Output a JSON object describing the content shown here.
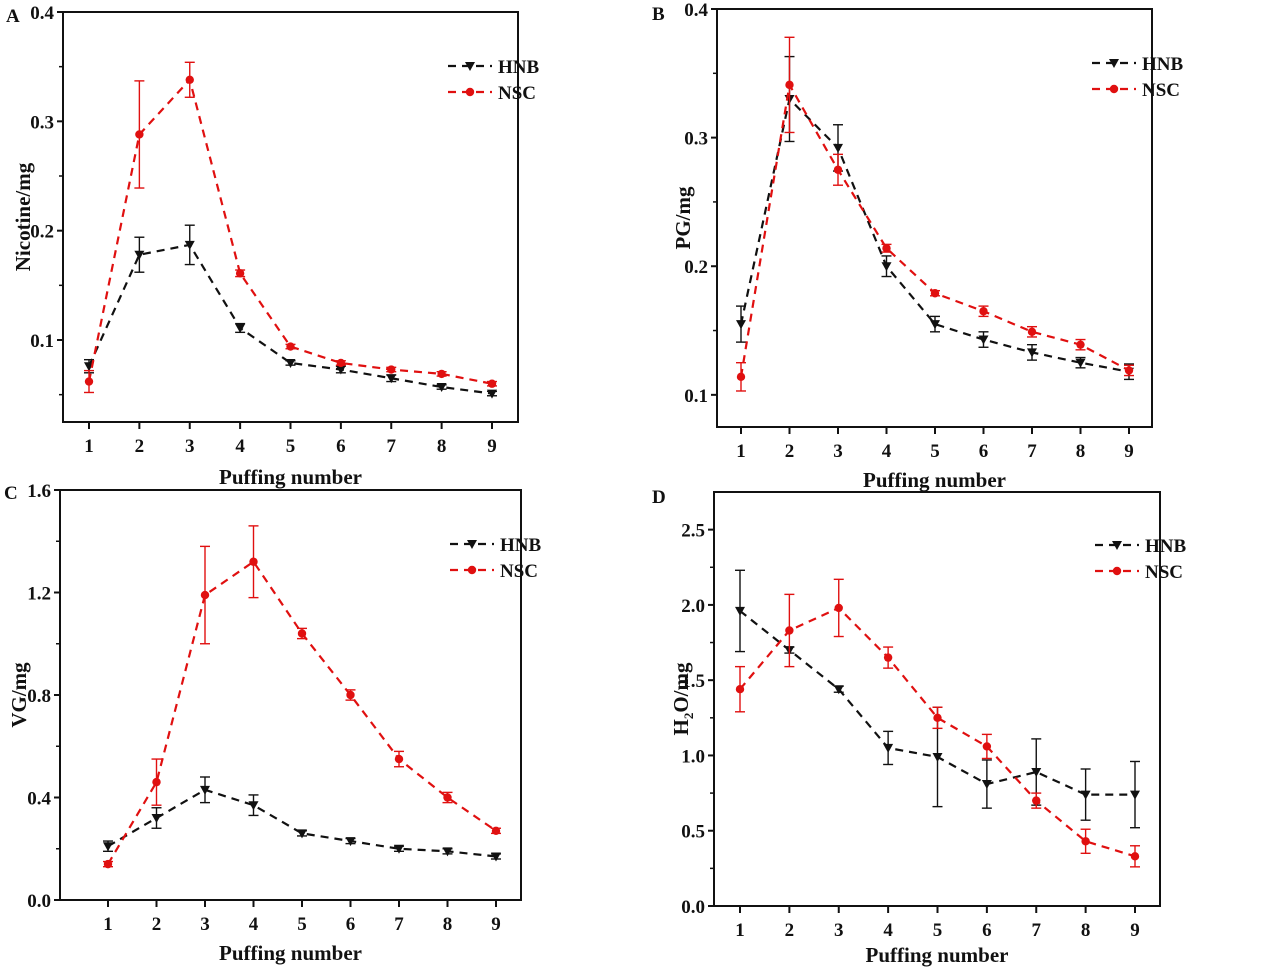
{
  "figure": {
    "colors": {
      "HNB": "#111111",
      "NSC": "#e01010"
    }
  },
  "chart_data": [
    {
      "panel": "A",
      "type": "line",
      "title": "",
      "xlabel": "Puffing number",
      "ylabel": "Nicotine/mg",
      "x": [
        1,
        2,
        3,
        4,
        5,
        6,
        7,
        8,
        9
      ],
      "xticks": [
        "1",
        "2",
        "3",
        "4",
        "5",
        "6",
        "7",
        "8",
        "9"
      ],
      "ylim": [
        0.025,
        0.4
      ],
      "yticks": [
        0.1,
        0.2,
        0.3,
        0.4
      ],
      "ytick_labels": [
        "0.1",
        "0.2",
        "0.3",
        "0.4"
      ],
      "yminor": [
        0.05,
        0.15,
        0.25,
        0.35
      ],
      "legend": {
        "position": "top-right",
        "entries": [
          "HNB",
          "NSC"
        ]
      },
      "grid": false,
      "series": [
        {
          "name": "HNB",
          "marker": "triangle-down",
          "line": "dashed",
          "values": [
            0.076,
            0.178,
            0.187,
            0.111,
            0.079,
            0.073,
            0.065,
            0.057,
            0.051
          ],
          "errors": [
            0.006,
            0.016,
            0.018,
            0.004,
            0.002,
            0.003,
            0.003,
            0.002,
            0.002
          ]
        },
        {
          "name": "NSC",
          "marker": "circle",
          "line": "dashed",
          "values": [
            0.062,
            0.288,
            0.338,
            0.161,
            0.094,
            0.079,
            0.073,
            0.069,
            0.06
          ],
          "errors": [
            0.01,
            0.049,
            0.016,
            0.003,
            0.002,
            0.002,
            0.002,
            0.002,
            0.002
          ]
        }
      ]
    },
    {
      "panel": "B",
      "type": "line",
      "title": "",
      "xlabel": "Puffing number",
      "ylabel": "PG/mg",
      "x": [
        1,
        2,
        3,
        4,
        5,
        6,
        7,
        8,
        9
      ],
      "xticks": [
        "1",
        "2",
        "3",
        "4",
        "5",
        "6",
        "7",
        "8",
        "9"
      ],
      "ylim": [
        0.075,
        0.4
      ],
      "yticks": [
        0.1,
        0.2,
        0.3,
        0.4
      ],
      "ytick_labels": [
        "0.1",
        "0.2",
        "0.3",
        "0.4"
      ],
      "yminor": [
        0.15,
        0.25,
        0.35
      ],
      "legend": {
        "position": "top-right",
        "entries": [
          "HNB",
          "NSC"
        ]
      },
      "grid": false,
      "series": [
        {
          "name": "HNB",
          "marker": "triangle-down",
          "line": "dashed",
          "values": [
            0.155,
            0.33,
            0.292,
            0.2,
            0.155,
            0.143,
            0.133,
            0.125,
            0.118
          ],
          "errors": [
            0.014,
            0.033,
            0.018,
            0.008,
            0.006,
            0.006,
            0.006,
            0.004,
            0.006
          ]
        },
        {
          "name": "NSC",
          "marker": "circle",
          "line": "dashed",
          "values": [
            0.114,
            0.341,
            0.275,
            0.214,
            0.179,
            0.165,
            0.149,
            0.139,
            0.119
          ],
          "errors": [
            0.011,
            0.037,
            0.012,
            0.003,
            0.002,
            0.004,
            0.004,
            0.004,
            0.004
          ]
        }
      ]
    },
    {
      "panel": "C",
      "type": "line",
      "title": "",
      "xlabel": "Puffing number",
      "ylabel": "VG/mg",
      "x": [
        1,
        2,
        3,
        4,
        5,
        6,
        7,
        8,
        9
      ],
      "xticks": [
        "1",
        "2",
        "3",
        "4",
        "5",
        "6",
        "7",
        "8",
        "9"
      ],
      "ylim": [
        0.0,
        1.6
      ],
      "yticks": [
        0.0,
        0.4,
        0.8,
        1.2,
        1.6
      ],
      "ytick_labels": [
        "0.0",
        "0.4",
        "0.8",
        "1.2",
        "1.6"
      ],
      "yminor": [
        0.2,
        0.6,
        1.0,
        1.4
      ],
      "legend": {
        "position": "top-right",
        "entries": [
          "HNB",
          "NSC"
        ]
      },
      "grid": false,
      "series": [
        {
          "name": "HNB",
          "marker": "triangle-down",
          "line": "dashed",
          "values": [
            0.21,
            0.32,
            0.43,
            0.37,
            0.26,
            0.23,
            0.2,
            0.19,
            0.17
          ],
          "errors": [
            0.02,
            0.04,
            0.05,
            0.04,
            0.01,
            0.01,
            0.01,
            0.01,
            0.01
          ]
        },
        {
          "name": "NSC",
          "marker": "circle",
          "line": "dashed",
          "values": [
            0.14,
            0.46,
            1.19,
            1.32,
            1.04,
            0.8,
            0.55,
            0.4,
            0.27
          ],
          "errors": [
            0.01,
            0.09,
            0.19,
            0.14,
            0.02,
            0.02,
            0.03,
            0.02,
            0.01
          ]
        }
      ]
    },
    {
      "panel": "D",
      "type": "line",
      "title": "",
      "xlabel": "Puffing number",
      "ylabel": "H2O/mg",
      "ylabel_main": "H",
      "ylabel_sub": "2",
      "ylabel_rest": "O/mg",
      "x": [
        1,
        2,
        3,
        4,
        5,
        6,
        7,
        8,
        9
      ],
      "xticks": [
        "1",
        "2",
        "3",
        "4",
        "5",
        "6",
        "7",
        "8",
        "9"
      ],
      "ylim": [
        0.0,
        2.75
      ],
      "yticks": [
        0.0,
        0.5,
        1.0,
        1.5,
        2.0,
        2.5
      ],
      "ytick_labels": [
        "0.0",
        "0.5",
        "1.0",
        "1.5",
        "2.0",
        "2.5"
      ],
      "yminor": [
        0.25,
        0.75,
        1.25,
        1.75,
        2.25
      ],
      "legend": {
        "position": "top-right",
        "entries": [
          "HNB",
          "NSC"
        ]
      },
      "grid": false,
      "series": [
        {
          "name": "HNB",
          "marker": "triangle-down",
          "line": "dashed",
          "values": [
            1.96,
            1.7,
            1.44,
            1.05,
            0.99,
            0.81,
            0.89,
            0.74,
            0.74
          ],
          "errors": [
            0.27,
            0.02,
            0.02,
            0.11,
            0.33,
            0.16,
            0.22,
            0.17,
            0.22
          ]
        },
        {
          "name": "NSC",
          "marker": "circle",
          "line": "dashed",
          "values": [
            1.44,
            1.83,
            1.98,
            1.65,
            1.25,
            1.06,
            0.7,
            0.43,
            0.33
          ],
          "errors": [
            0.15,
            0.24,
            0.19,
            0.07,
            0.07,
            0.08,
            0.05,
            0.08,
            0.07
          ]
        }
      ]
    }
  ]
}
